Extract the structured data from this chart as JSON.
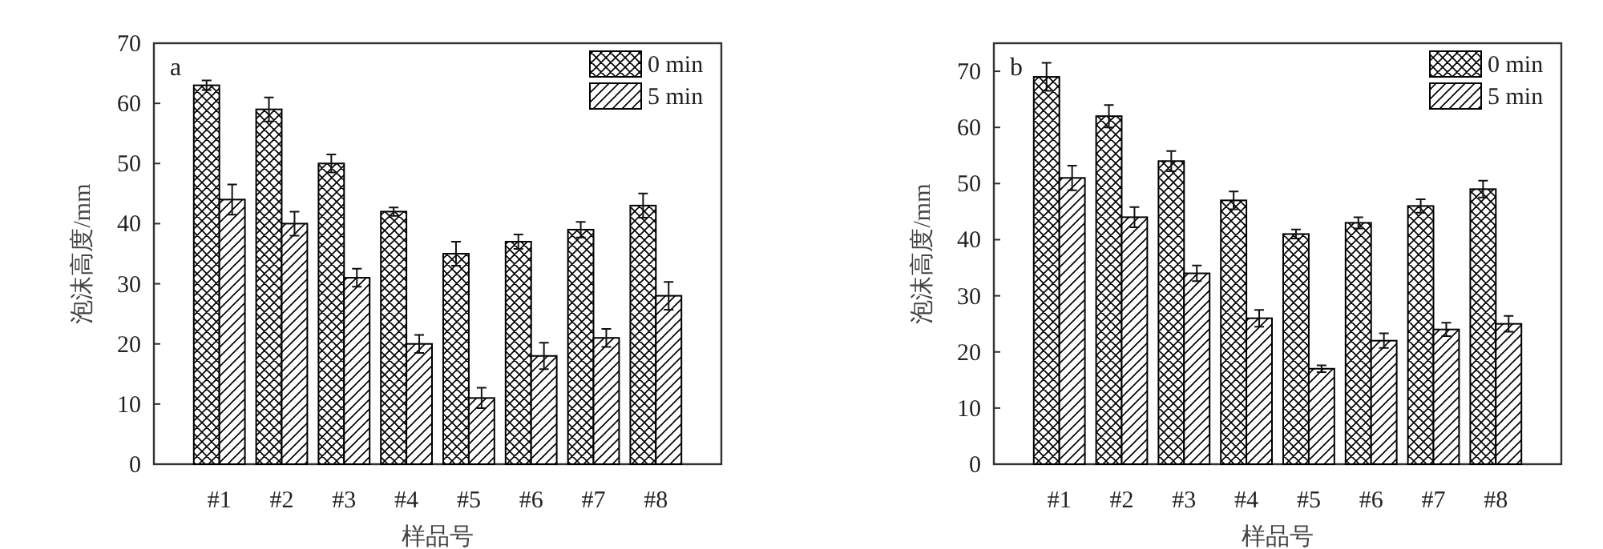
{
  "chart_data": [
    {
      "type": "bar",
      "categories": [
        "#1",
        "#2",
        "#3",
        "#4",
        "#5",
        "#6",
        "#7",
        "#8"
      ],
      "xlabel": "样品号",
      "ylabel": "泡沫高度/mm",
      "ylim": [
        0,
        70
      ],
      "yticks": [
        0,
        10,
        20,
        30,
        40,
        50,
        60,
        70
      ],
      "legend": "top right",
      "annotations": [
        "a"
      ],
      "series": [
        {
          "name": "0 min",
          "color": "#000000",
          "values": [
            63,
            59,
            50,
            42,
            35,
            37,
            39,
            43
          ],
          "errors": [
            0.8,
            2,
            1.5,
            0.7,
            2,
            1.2,
            1.3,
            2
          ]
        },
        {
          "name": "5 min",
          "color": "#000000",
          "values": [
            44,
            40,
            31,
            20,
            11,
            18,
            21,
            28
          ],
          "errors": [
            2.5,
            2,
            1.5,
            1.5,
            1.7,
            2.2,
            1.5,
            2.3
          ]
        }
      ]
    },
    {
      "type": "bar",
      "categories": [
        "#1",
        "#2",
        "#3",
        "#4",
        "#5",
        "#6",
        "#7",
        "#8"
      ],
      "xlabel": "样品号",
      "ylabel": "泡沫高度/mm",
      "ylim": [
        0,
        75
      ],
      "yticks": [
        0,
        10,
        20,
        30,
        40,
        50,
        60,
        70
      ],
      "legend": "top right",
      "annotations": [
        "b"
      ],
      "series": [
        {
          "name": "0 min",
          "color": "#000000",
          "values": [
            69,
            62,
            54,
            47,
            41,
            43,
            46,
            49
          ],
          "errors": [
            2.5,
            2,
            1.8,
            1.6,
            0.8,
            1,
            1.2,
            1.5
          ]
        },
        {
          "name": "5 min",
          "color": "#000000",
          "values": [
            51,
            44,
            34,
            26,
            17,
            22,
            24,
            25
          ],
          "errors": [
            2.2,
            1.8,
            1.4,
            1.5,
            0.6,
            1.3,
            1.2,
            1.4
          ]
        }
      ]
    }
  ]
}
